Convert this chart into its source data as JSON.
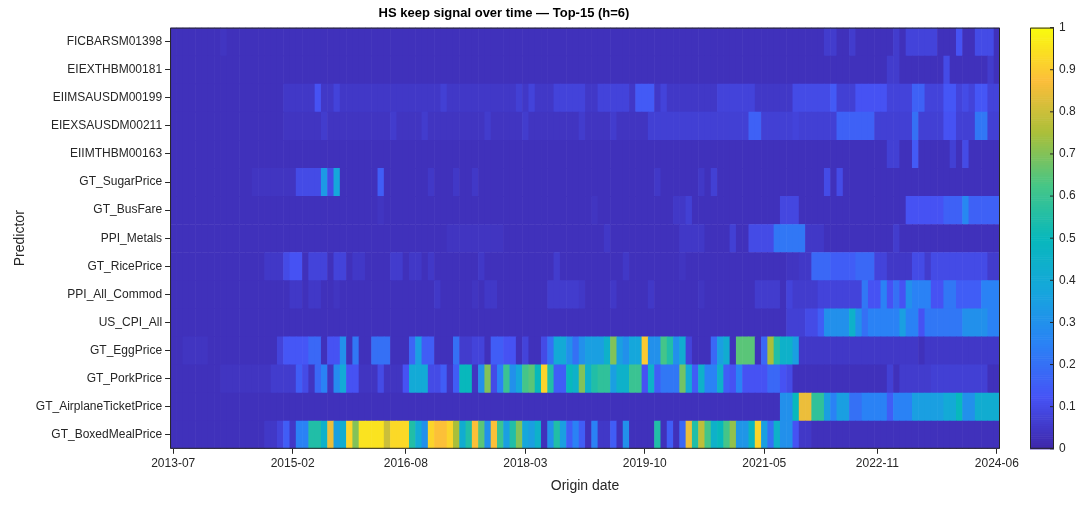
{
  "chart_data": {
    "type": "heatmap",
    "title": "HS keep signal over time — Top-15 (h=6)",
    "xlabel": "Origin date",
    "ylabel": "Predictor",
    "categories": [
      "2013-07",
      null,
      null,
      null,
      null,
      null,
      null,
      null,
      null,
      null,
      null,
      null,
      null,
      null,
      null,
      null,
      null,
      null,
      null,
      "2015-02",
      null,
      null,
      null,
      null,
      null,
      null,
      null,
      null,
      null,
      null,
      null,
      null,
      null,
      null,
      null,
      null,
      null,
      "2016-08",
      null,
      null,
      null,
      null,
      null,
      null,
      null,
      null,
      null,
      null,
      null,
      null,
      null,
      null,
      null,
      null,
      null,
      null,
      "2018-03",
      null,
      null,
      null,
      null,
      null,
      null,
      null,
      null,
      null,
      null,
      null,
      null,
      null,
      null,
      null,
      null,
      null,
      null,
      "2019-10",
      null,
      null,
      null,
      null,
      null,
      null,
      null,
      null,
      null,
      null,
      null,
      null,
      null,
      null,
      null,
      null,
      null,
      null,
      "2021-05",
      null,
      null,
      null,
      null,
      null,
      null,
      null,
      null,
      null,
      null,
      null,
      null,
      null,
      null,
      null,
      null,
      null,
      "2022-11",
      null,
      null,
      null,
      null,
      null,
      null,
      null,
      null,
      null,
      null,
      null,
      null,
      null,
      null,
      null,
      null,
      null,
      null,
      "2024-06"
    ],
    "y_categories": [
      "FICBARSM01398",
      "EIEXTHBM00181",
      "EIIMSAUSDM00199",
      "EIEXSAUSDM00211",
      "EIIMTHBM00163",
      "GT_SugarPrice",
      "GT_BusFare",
      "PPI_Metals",
      "GT_RicePrice",
      "PPI_All_Commod",
      "US_CPI_All",
      "GT_EggPrice",
      "GT_PorkPrice",
      "GT_AirplaneTicketPrice",
      "GT_BoxedMealPrice"
    ],
    "cells": [
      [
        0.03,
        0.03,
        0.03,
        0.03,
        0.03,
        0.03,
        0.03,
        0.03,
        0.04,
        0.03,
        0.03,
        0.03,
        0.03,
        0.03,
        0.03,
        0.03,
        0.03,
        0.03,
        0.03,
        0.03,
        0.03,
        0.03,
        0.03,
        0.03,
        0.03,
        0.03,
        0.03,
        0.03,
        0.03,
        0.03,
        0.03,
        0.03,
        0.03,
        0.03,
        0.03,
        0.03,
        0.03,
        0.03,
        0.03,
        0.03,
        0.03,
        0.03,
        0.03,
        0.03,
        0.03,
        0.03,
        0.03,
        0.03,
        0.03,
        0.03,
        0.03,
        0.03,
        0.03,
        0.03,
        0.03,
        0.03,
        0.03,
        0.03,
        0.03,
        0.03,
        0.03,
        0.03,
        0.03,
        0.03,
        0.03,
        0.03,
        0.03,
        0.03,
        0.03,
        0.03,
        0.03,
        0.03,
        0.03,
        0.03,
        0.03,
        0.03,
        0.03,
        0.03,
        0.03,
        0.03,
        0.03,
        0.03,
        0.03,
        0.03,
        0.03,
        0.03,
        0.03,
        0.03,
        0.03,
        0.03,
        0.03,
        0.03,
        0.03,
        0.03,
        0.03,
        0.03,
        0.03,
        0.03,
        0.03,
        0.03,
        0.03,
        0.03,
        0.03,
        0.03,
        0.06,
        0.06,
        0.03,
        0.03,
        0.06,
        0.03,
        0.03,
        0.03,
        0.03,
        0.03,
        0.03,
        0.06,
        0.03,
        0.08,
        0.08,
        0.08,
        0.08,
        0.08,
        0.03,
        0.03,
        0.03,
        0.12,
        0.03,
        0.03,
        0.1,
        0.1,
        0.1,
        0.03
      ],
      [
        0.03,
        0.03,
        0.03,
        0.03,
        0.03,
        0.03,
        0.03,
        0.03,
        0.03,
        0.03,
        0.03,
        0.03,
        0.03,
        0.03,
        0.03,
        0.03,
        0.03,
        0.03,
        0.03,
        0.03,
        0.03,
        0.03,
        0.03,
        0.03,
        0.03,
        0.03,
        0.03,
        0.03,
        0.03,
        0.03,
        0.03,
        0.03,
        0.03,
        0.03,
        0.03,
        0.03,
        0.03,
        0.03,
        0.03,
        0.03,
        0.03,
        0.03,
        0.03,
        0.03,
        0.03,
        0.03,
        0.03,
        0.03,
        0.03,
        0.03,
        0.03,
        0.03,
        0.03,
        0.03,
        0.03,
        0.03,
        0.03,
        0.03,
        0.03,
        0.03,
        0.03,
        0.03,
        0.03,
        0.03,
        0.03,
        0.03,
        0.03,
        0.03,
        0.03,
        0.03,
        0.03,
        0.03,
        0.03,
        0.03,
        0.03,
        0.03,
        0.03,
        0.03,
        0.03,
        0.03,
        0.03,
        0.03,
        0.03,
        0.03,
        0.03,
        0.03,
        0.03,
        0.03,
        0.03,
        0.03,
        0.03,
        0.03,
        0.03,
        0.03,
        0.03,
        0.03,
        0.03,
        0.03,
        0.03,
        0.03,
        0.03,
        0.03,
        0.03,
        0.03,
        0.03,
        0.03,
        0.03,
        0.03,
        0.03,
        0.03,
        0.03,
        0.03,
        0.03,
        0.03,
        0.06,
        0.06,
        0.03,
        0.03,
        0.03,
        0.03,
        0.03,
        0.03,
        0.03,
        0.1,
        0.03,
        0.03,
        0.03,
        0.03,
        0.03,
        0.03,
        0.06,
        0.03
      ],
      [
        0.03,
        0.03,
        0.03,
        0.03,
        0.03,
        0.03,
        0.03,
        0.03,
        0.03,
        0.03,
        0.03,
        0.03,
        0.03,
        0.03,
        0.03,
        0.03,
        0.03,
        0.03,
        0.05,
        0.05,
        0.05,
        0.05,
        0.05,
        0.12,
        0.05,
        0.05,
        0.08,
        0.05,
        0.05,
        0.05,
        0.05,
        0.05,
        0.05,
        0.05,
        0.05,
        0.05,
        0.05,
        0.05,
        0.05,
        0.05,
        0.05,
        0.05,
        0.05,
        0.07,
        0.05,
        0.05,
        0.05,
        0.05,
        0.05,
        0.05,
        0.05,
        0.05,
        0.05,
        0.05,
        0.05,
        0.07,
        0.05,
        0.08,
        0.05,
        0.05,
        0.05,
        0.08,
        0.08,
        0.08,
        0.08,
        0.08,
        0.05,
        0.05,
        0.08,
        0.08,
        0.08,
        0.08,
        0.08,
        0.05,
        0.14,
        0.14,
        0.14,
        0.05,
        0.08,
        0.05,
        0.05,
        0.05,
        0.05,
        0.05,
        0.05,
        0.05,
        0.05,
        0.08,
        0.08,
        0.08,
        0.08,
        0.08,
        0.08,
        0.05,
        0.05,
        0.05,
        0.05,
        0.05,
        0.05,
        0.1,
        0.1,
        0.1,
        0.1,
        0.1,
        0.1,
        0.14,
        0.07,
        0.07,
        0.07,
        0.12,
        0.12,
        0.12,
        0.12,
        0.12,
        0.08,
        0.08,
        0.08,
        0.08,
        0.16,
        0.16,
        0.08,
        0.08,
        0.08,
        0.13,
        0.13,
        0.08,
        0.1,
        0.08,
        0.13,
        0.13,
        0.08,
        0.08
      ],
      [
        0.03,
        0.03,
        0.03,
        0.03,
        0.03,
        0.03,
        0.03,
        0.03,
        0.03,
        0.03,
        0.03,
        0.03,
        0.03,
        0.03,
        0.03,
        0.03,
        0.03,
        0.03,
        0.04,
        0.04,
        0.04,
        0.04,
        0.04,
        0.04,
        0.06,
        0.04,
        0.04,
        0.04,
        0.04,
        0.04,
        0.04,
        0.04,
        0.04,
        0.04,
        0.04,
        0.06,
        0.04,
        0.04,
        0.04,
        0.04,
        0.06,
        0.04,
        0.04,
        0.04,
        0.04,
        0.04,
        0.04,
        0.04,
        0.04,
        0.04,
        0.06,
        0.04,
        0.04,
        0.04,
        0.04,
        0.04,
        0.06,
        0.04,
        0.04,
        0.04,
        0.04,
        0.04,
        0.04,
        0.04,
        0.04,
        0.06,
        0.04,
        0.04,
        0.04,
        0.04,
        0.06,
        0.04,
        0.04,
        0.04,
        0.04,
        0.04,
        0.07,
        0.07,
        0.07,
        0.07,
        0.07,
        0.07,
        0.07,
        0.07,
        0.07,
        0.07,
        0.07,
        0.07,
        0.07,
        0.07,
        0.07,
        0.07,
        0.16,
        0.16,
        0.07,
        0.07,
        0.07,
        0.07,
        0.07,
        0.08,
        0.07,
        0.07,
        0.07,
        0.07,
        0.07,
        0.07,
        0.16,
        0.16,
        0.16,
        0.16,
        0.16,
        0.16,
        0.07,
        0.07,
        0.07,
        0.07,
        0.07,
        0.07,
        0.2,
        0.07,
        0.07,
        0.07,
        0.07,
        0.12,
        0.12,
        0.07,
        0.07,
        0.07,
        0.22,
        0.22,
        0.07,
        0.07
      ],
      [
        0.03,
        0.03,
        0.03,
        0.03,
        0.03,
        0.03,
        0.03,
        0.03,
        0.03,
        0.03,
        0.03,
        0.03,
        0.03,
        0.03,
        0.03,
        0.03,
        0.03,
        0.03,
        0.03,
        0.03,
        0.03,
        0.03,
        0.03,
        0.03,
        0.03,
        0.03,
        0.03,
        0.03,
        0.03,
        0.03,
        0.03,
        0.03,
        0.03,
        0.03,
        0.03,
        0.03,
        0.03,
        0.03,
        0.03,
        0.03,
        0.03,
        0.03,
        0.03,
        0.03,
        0.03,
        0.03,
        0.03,
        0.03,
        0.03,
        0.03,
        0.03,
        0.03,
        0.03,
        0.03,
        0.03,
        0.03,
        0.03,
        0.03,
        0.03,
        0.03,
        0.03,
        0.03,
        0.03,
        0.03,
        0.03,
        0.03,
        0.03,
        0.03,
        0.03,
        0.03,
        0.03,
        0.03,
        0.03,
        0.03,
        0.03,
        0.03,
        0.03,
        0.03,
        0.03,
        0.03,
        0.03,
        0.03,
        0.03,
        0.03,
        0.03,
        0.03,
        0.03,
        0.03,
        0.03,
        0.03,
        0.03,
        0.03,
        0.03,
        0.03,
        0.03,
        0.03,
        0.03,
        0.03,
        0.03,
        0.03,
        0.03,
        0.03,
        0.03,
        0.03,
        0.03,
        0.03,
        0.03,
        0.03,
        0.03,
        0.03,
        0.03,
        0.03,
        0.03,
        0.03,
        0.07,
        0.07,
        0.03,
        0.03,
        0.14,
        0.03,
        0.03,
        0.03,
        0.03,
        0.03,
        0.07,
        0.03,
        0.1,
        0.03,
        0.03,
        0.03,
        0.03,
        0.03
      ],
      [
        0.03,
        0.03,
        0.03,
        0.03,
        0.03,
        0.03,
        0.03,
        0.03,
        0.03,
        0.03,
        0.03,
        0.03,
        0.03,
        0.04,
        0.04,
        0.04,
        0.04,
        0.04,
        0.04,
        0.04,
        0.1,
        0.1,
        0.1,
        0.1,
        0.33,
        0.1,
        0.38,
        0.03,
        0.03,
        0.03,
        0.03,
        0.03,
        0.03,
        0.15,
        0.03,
        0.03,
        0.03,
        0.03,
        0.03,
        0.03,
        0.03,
        0.05,
        0.03,
        0.03,
        0.03,
        0.05,
        0.03,
        0.03,
        0.05,
        0.03,
        0.03,
        0.03,
        0.03,
        0.03,
        0.03,
        0.03,
        0.03,
        0.03,
        0.03,
        0.03,
        0.03,
        0.03,
        0.03,
        0.03,
        0.03,
        0.03,
        0.03,
        0.03,
        0.03,
        0.03,
        0.03,
        0.03,
        0.03,
        0.03,
        0.03,
        0.03,
        0.03,
        0.05,
        0.03,
        0.03,
        0.03,
        0.03,
        0.03,
        0.03,
        0.05,
        0.03,
        0.07,
        0.03,
        0.03,
        0.03,
        0.03,
        0.03,
        0.03,
        0.03,
        0.03,
        0.03,
        0.03,
        0.03,
        0.03,
        0.03,
        0.03,
        0.03,
        0.03,
        0.03,
        0.1,
        0.03,
        0.1,
        0.03,
        0.03,
        0.03,
        0.03,
        0.03,
        0.03,
        0.03,
        0.03,
        0.03,
        0.03,
        0.03,
        0.03,
        0.03,
        0.03,
        0.03,
        0.03,
        0.03,
        0.03,
        0.03,
        0.03,
        0.03,
        0.03,
        0.03,
        0.03,
        0.03
      ],
      [
        0.03,
        0.03,
        0.03,
        0.03,
        0.03,
        0.03,
        0.03,
        0.03,
        0.03,
        0.03,
        0.03,
        0.03,
        0.03,
        0.03,
        0.03,
        0.03,
        0.03,
        0.03,
        0.03,
        0.03,
        0.03,
        0.03,
        0.03,
        0.03,
        0.03,
        0.03,
        0.03,
        0.03,
        0.03,
        0.03,
        0.03,
        0.03,
        0.03,
        0.04,
        0.03,
        0.03,
        0.03,
        0.03,
        0.03,
        0.03,
        0.03,
        0.03,
        0.03,
        0.03,
        0.03,
        0.03,
        0.03,
        0.03,
        0.03,
        0.03,
        0.03,
        0.03,
        0.03,
        0.03,
        0.03,
        0.03,
        0.03,
        0.03,
        0.03,
        0.03,
        0.03,
        0.03,
        0.03,
        0.03,
        0.03,
        0.03,
        0.03,
        0.04,
        0.03,
        0.03,
        0.03,
        0.03,
        0.03,
        0.03,
        0.03,
        0.03,
        0.03,
        0.03,
        0.03,
        0.03,
        0.05,
        0.05,
        0.07,
        0.03,
        0.03,
        0.03,
        0.03,
        0.03,
        0.03,
        0.03,
        0.03,
        0.03,
        0.03,
        0.03,
        0.03,
        0.03,
        0.03,
        0.09,
        0.09,
        0.09,
        0.03,
        0.03,
        0.03,
        0.03,
        0.03,
        0.03,
        0.03,
        0.03,
        0.03,
        0.03,
        0.03,
        0.03,
        0.03,
        0.03,
        0.03,
        0.03,
        0.03,
        0.12,
        0.12,
        0.12,
        0.12,
        0.12,
        0.12,
        0.16,
        0.16,
        0.16,
        0.27,
        0.16,
        0.16,
        0.16,
        0.16,
        0.16
      ],
      [
        0.03,
        0.03,
        0.03,
        0.03,
        0.03,
        0.03,
        0.03,
        0.03,
        0.03,
        0.03,
        0.03,
        0.03,
        0.03,
        0.03,
        0.03,
        0.03,
        0.03,
        0.03,
        0.03,
        0.03,
        0.03,
        0.03,
        0.03,
        0.03,
        0.03,
        0.03,
        0.03,
        0.03,
        0.03,
        0.03,
        0.03,
        0.03,
        0.03,
        0.03,
        0.03,
        0.03,
        0.03,
        0.03,
        0.03,
        0.03,
        0.03,
        0.03,
        0.03,
        0.03,
        0.04,
        0.04,
        0.04,
        0.04,
        0.04,
        0.04,
        0.04,
        0.04,
        0.04,
        0.03,
        0.03,
        0.03,
        0.03,
        0.03,
        0.03,
        0.03,
        0.03,
        0.03,
        0.03,
        0.03,
        0.03,
        0.03,
        0.03,
        0.03,
        0.03,
        0.05,
        0.03,
        0.03,
        0.03,
        0.03,
        0.03,
        0.03,
        0.03,
        0.03,
        0.03,
        0.03,
        0.03,
        0.05,
        0.05,
        0.05,
        0.05,
        0.03,
        0.03,
        0.03,
        0.03,
        0.07,
        0.03,
        0.03,
        0.1,
        0.1,
        0.1,
        0.1,
        0.22,
        0.22,
        0.22,
        0.22,
        0.22,
        0.05,
        0.05,
        0.05,
        0.03,
        0.03,
        0.03,
        0.03,
        0.03,
        0.03,
        0.03,
        0.03,
        0.03,
        0.03,
        0.03,
        0.06,
        0.03,
        0.03,
        0.03,
        0.03,
        0.03,
        0.03,
        0.03,
        0.03,
        0.03,
        0.03,
        0.03,
        0.03,
        0.03,
        0.03,
        0.03,
        0.03
      ],
      [
        0.03,
        0.03,
        0.03,
        0.03,
        0.03,
        0.03,
        0.03,
        0.03,
        0.03,
        0.03,
        0.03,
        0.03,
        0.03,
        0.03,
        0.03,
        0.05,
        0.05,
        0.05,
        0.1,
        0.12,
        0.12,
        0.03,
        0.08,
        0.08,
        0.08,
        0.03,
        0.08,
        0.08,
        0.03,
        0.05,
        0.05,
        0.03,
        0.03,
        0.03,
        0.03,
        0.06,
        0.06,
        0.03,
        0.05,
        0.05,
        0.03,
        0.05,
        0.03,
        0.03,
        0.03,
        0.03,
        0.03,
        0.03,
        0.03,
        0.05,
        0.03,
        0.03,
        0.03,
        0.03,
        0.03,
        0.03,
        0.03,
        0.03,
        0.03,
        0.03,
        0.03,
        0.06,
        0.03,
        0.03,
        0.03,
        0.03,
        0.03,
        0.03,
        0.03,
        0.03,
        0.03,
        0.03,
        0.05,
        0.03,
        0.03,
        0.03,
        0.03,
        0.03,
        0.03,
        0.03,
        0.03,
        0.04,
        0.03,
        0.03,
        0.03,
        0.03,
        0.03,
        0.03,
        0.03,
        0.03,
        0.03,
        0.03,
        0.03,
        0.03,
        0.03,
        0.03,
        0.03,
        0.03,
        0.04,
        0.04,
        0.05,
        0.05,
        0.18,
        0.18,
        0.18,
        0.15,
        0.15,
        0.15,
        0.15,
        0.18,
        0.18,
        0.18,
        0.08,
        0.08,
        0.05,
        0.05,
        0.05,
        0.05,
        0.1,
        0.1,
        0.06,
        0.1,
        0.1,
        0.1,
        0.1,
        0.1,
        0.1,
        0.1,
        0.1,
        0.1,
        0.06,
        0.06
      ],
      [
        0.03,
        0.03,
        0.03,
        0.03,
        0.03,
        0.03,
        0.03,
        0.03,
        0.03,
        0.03,
        0.03,
        0.03,
        0.03,
        0.03,
        0.03,
        0.03,
        0.03,
        0.03,
        0.03,
        0.05,
        0.05,
        0.03,
        0.05,
        0.05,
        0.03,
        0.03,
        0.04,
        0.03,
        0.03,
        0.03,
        0.03,
        0.03,
        0.03,
        0.03,
        0.03,
        0.03,
        0.03,
        0.03,
        0.03,
        0.03,
        0.03,
        0.03,
        0.05,
        0.03,
        0.03,
        0.03,
        0.03,
        0.03,
        0.04,
        0.03,
        0.05,
        0.05,
        0.03,
        0.03,
        0.03,
        0.03,
        0.03,
        0.03,
        0.03,
        0.03,
        0.06,
        0.06,
        0.06,
        0.06,
        0.06,
        0.05,
        0.03,
        0.03,
        0.03,
        0.03,
        0.05,
        0.03,
        0.03,
        0.03,
        0.03,
        0.03,
        0.05,
        0.03,
        0.03,
        0.03,
        0.03,
        0.03,
        0.03,
        0.03,
        0.04,
        0.03,
        0.03,
        0.03,
        0.03,
        0.03,
        0.03,
        0.03,
        0.03,
        0.06,
        0.06,
        0.06,
        0.06,
        0.03,
        0.08,
        0.06,
        0.06,
        0.06,
        0.06,
        0.08,
        0.08,
        0.08,
        0.08,
        0.08,
        0.08,
        0.08,
        0.22,
        0.12,
        0.12,
        0.25,
        0.12,
        0.2,
        0.12,
        0.3,
        0.25,
        0.25,
        0.25,
        0.12,
        0.12,
        0.22,
        0.22,
        0.15,
        0.15,
        0.15,
        0.15,
        0.25,
        0.25,
        0.25
      ],
      [
        0.03,
        0.03,
        0.03,
        0.03,
        0.03,
        0.03,
        0.03,
        0.03,
        0.03,
        0.03,
        0.03,
        0.03,
        0.03,
        0.03,
        0.03,
        0.03,
        0.03,
        0.03,
        0.03,
        0.03,
        0.03,
        0.03,
        0.03,
        0.03,
        0.03,
        0.03,
        0.03,
        0.03,
        0.03,
        0.03,
        0.03,
        0.03,
        0.03,
        0.03,
        0.03,
        0.03,
        0.03,
        0.03,
        0.03,
        0.03,
        0.03,
        0.03,
        0.03,
        0.03,
        0.03,
        0.03,
        0.03,
        0.03,
        0.03,
        0.03,
        0.03,
        0.03,
        0.03,
        0.03,
        0.03,
        0.03,
        0.03,
        0.03,
        0.03,
        0.03,
        0.03,
        0.03,
        0.03,
        0.03,
        0.03,
        0.03,
        0.03,
        0.03,
        0.03,
        0.03,
        0.03,
        0.03,
        0.03,
        0.03,
        0.03,
        0.03,
        0.03,
        0.03,
        0.03,
        0.03,
        0.03,
        0.03,
        0.03,
        0.03,
        0.03,
        0.03,
        0.03,
        0.03,
        0.03,
        0.03,
        0.03,
        0.03,
        0.03,
        0.03,
        0.03,
        0.03,
        0.03,
        0.03,
        0.07,
        0.07,
        0.07,
        0.1,
        0.1,
        0.15,
        0.3,
        0.3,
        0.3,
        0.3,
        0.45,
        0.3,
        0.2,
        0.25,
        0.25,
        0.25,
        0.25,
        0.25,
        0.35,
        0.25,
        0.25,
        0.12,
        0.22,
        0.22,
        0.22,
        0.22,
        0.22,
        0.22,
        0.3,
        0.3,
        0.3,
        0.3,
        0.25,
        0.25
      ],
      [
        0.03,
        0.03,
        0.04,
        0.04,
        0.04,
        0.04,
        0.03,
        0.03,
        0.03,
        0.03,
        0.03,
        0.03,
        0.03,
        0.03,
        0.03,
        0.03,
        0.03,
        0.08,
        0.13,
        0.13,
        0.13,
        0.13,
        0.18,
        0.18,
        0.03,
        0.12,
        0.12,
        0.3,
        0.03,
        0.22,
        0.03,
        0.03,
        0.2,
        0.2,
        0.2,
        0.03,
        0.03,
        0.03,
        0.17,
        0.35,
        0.15,
        0.15,
        0.03,
        0.03,
        0.03,
        0.2,
        0.06,
        0.06,
        0.08,
        0.08,
        0.03,
        0.15,
        0.15,
        0.12,
        0.12,
        0.03,
        0.08,
        0.03,
        0.03,
        0.1,
        0.2,
        0.4,
        0.4,
        0.3,
        0.2,
        0.3,
        0.35,
        0.35,
        0.35,
        0.45,
        0.7,
        0.35,
        0.3,
        0.38,
        0.38,
        0.9,
        0.3,
        0.3,
        0.62,
        0.55,
        0.3,
        0.42,
        0.08,
        0.03,
        0.03,
        0.03,
        0.18,
        0.35,
        0.42,
        0.03,
        0.65,
        0.65,
        0.65,
        0.03,
        0.18,
        0.75,
        0.55,
        0.45,
        0.45,
        0.35,
        0.05,
        0.05,
        0.05,
        0.05,
        0.05,
        0.05,
        0.05,
        0.05,
        0.05,
        0.05,
        0.05,
        0.05,
        0.05,
        0.05,
        0.05,
        0.05,
        0.05,
        0.05,
        0.05,
        0.03,
        0.05,
        0.05,
        0.05,
        0.05,
        0.05,
        0.05,
        0.05,
        0.05,
        0.05,
        0.05,
        0.05,
        0.05
      ],
      [
        0.03,
        0.03,
        0.03,
        0.03,
        0.03,
        0.03,
        0.03,
        0.03,
        0.04,
        0.04,
        0.04,
        0.04,
        0.04,
        0.04,
        0.04,
        0.04,
        0.06,
        0.06,
        0.06,
        0.06,
        0.15,
        0.1,
        0.04,
        0.18,
        0.25,
        0.04,
        0.28,
        0.4,
        0.12,
        0.12,
        0.04,
        0.04,
        0.04,
        0.1,
        0.04,
        0.04,
        0.04,
        0.12,
        0.4,
        0.4,
        0.4,
        0.1,
        0.1,
        0.15,
        0.04,
        0.15,
        0.5,
        0.5,
        0.04,
        0.3,
        0.7,
        0.1,
        0.25,
        0.6,
        0.3,
        0.38,
        0.62,
        0.65,
        0.5,
        0.92,
        0.55,
        0.15,
        0.15,
        0.5,
        0.45,
        0.7,
        0.45,
        0.55,
        0.58,
        0.58,
        0.35,
        0.45,
        0.45,
        0.6,
        0.6,
        0.12,
        0.45,
        0.15,
        0.22,
        0.22,
        0.22,
        0.68,
        0.4,
        0.15,
        0.45,
        0.25,
        0.25,
        0.45,
        0.15,
        0.12,
        0.25,
        0.12,
        0.12,
        0.12,
        0.12,
        0.18,
        0.18,
        0.12,
        0.1,
        0.03,
        0.03,
        0.03,
        0.03,
        0.03,
        0.03,
        0.03,
        0.03,
        0.03,
        0.03,
        0.03,
        0.03,
        0.03,
        0.03,
        0.03,
        0.07,
        0.03,
        0.06,
        0.06,
        0.06,
        0.06,
        0.06,
        0.07,
        0.07,
        0.07,
        0.07,
        0.07,
        0.07,
        0.07,
        0.07,
        0.07,
        0.03,
        0.03
      ],
      [
        0.03,
        0.03,
        0.03,
        0.03,
        0.03,
        0.03,
        0.03,
        0.03,
        0.03,
        0.03,
        0.03,
        0.03,
        0.03,
        0.03,
        0.03,
        0.03,
        0.03,
        0.03,
        0.03,
        0.03,
        0.03,
        0.03,
        0.03,
        0.03,
        0.03,
        0.03,
        0.03,
        0.03,
        0.03,
        0.03,
        0.03,
        0.03,
        0.03,
        0.03,
        0.03,
        0.03,
        0.03,
        0.03,
        0.03,
        0.03,
        0.03,
        0.03,
        0.03,
        0.03,
        0.03,
        0.03,
        0.03,
        0.03,
        0.03,
        0.03,
        0.03,
        0.03,
        0.03,
        0.03,
        0.03,
        0.03,
        0.03,
        0.03,
        0.03,
        0.03,
        0.03,
        0.03,
        0.03,
        0.03,
        0.03,
        0.03,
        0.03,
        0.03,
        0.03,
        0.03,
        0.03,
        0.03,
        0.03,
        0.03,
        0.03,
        0.03,
        0.03,
        0.03,
        0.03,
        0.03,
        0.03,
        0.03,
        0.03,
        0.03,
        0.03,
        0.03,
        0.03,
        0.03,
        0.03,
        0.03,
        0.03,
        0.03,
        0.03,
        0.03,
        0.03,
        0.03,
        0.03,
        0.3,
        0.3,
        0.5,
        0.85,
        0.85,
        0.58,
        0.58,
        0.35,
        0.25,
        0.35,
        0.35,
        0.2,
        0.2,
        0.25,
        0.25,
        0.25,
        0.25,
        0.15,
        0.25,
        0.25,
        0.25,
        0.35,
        0.35,
        0.35,
        0.35,
        0.35,
        0.4,
        0.4,
        0.5,
        0.3,
        0.3,
        0.42,
        0.42,
        0.42,
        0.42
      ],
      [
        0.03,
        0.03,
        0.03,
        0.03,
        0.03,
        0.03,
        0.03,
        0.03,
        0.03,
        0.03,
        0.03,
        0.03,
        0.03,
        0.03,
        0.03,
        0.05,
        0.05,
        0.08,
        0.15,
        0.05,
        0.25,
        0.25,
        0.55,
        0.55,
        0.45,
        0.85,
        0.35,
        0.42,
        0.92,
        0.7,
        0.95,
        0.95,
        0.95,
        0.95,
        0.8,
        0.93,
        0.93,
        0.93,
        0.55,
        0.4,
        0.3,
        0.92,
        0.88,
        0.88,
        0.92,
        0.75,
        0.42,
        0.55,
        0.88,
        0.65,
        0.3,
        0.88,
        0.6,
        0.35,
        0.55,
        0.7,
        0.38,
        0.35,
        0.45,
        0.03,
        0.3,
        0.55,
        0.35,
        0.15,
        0.25,
        0.15,
        0.03,
        0.25,
        0.05,
        0.05,
        0.15,
        0.03,
        0.3,
        0.03,
        0.03,
        0.03,
        0.03,
        0.55,
        0.03,
        0.15,
        0.03,
        0.18,
        0.85,
        0.55,
        0.78,
        0.62,
        0.45,
        0.5,
        0.62,
        0.72,
        0.32,
        0.32,
        0.48,
        0.92,
        0.35,
        0.2,
        0.45,
        0.3,
        0.3,
        0.12,
        0.05,
        0.05,
        0.03,
        0.03,
        0.03,
        0.03,
        0.03,
        0.03,
        0.03,
        0.03,
        0.03,
        0.03,
        0.03,
        0.03,
        0.03,
        0.03,
        0.03,
        0.03,
        0.03,
        0.03,
        0.03,
        0.03,
        0.03,
        0.03,
        0.03,
        0.03,
        0.03,
        0.03,
        0.03,
        0.03,
        0.03,
        0.03
      ]
    ],
    "clim": [
      0,
      1
    ],
    "cticks": [
      0,
      0.1,
      0.2,
      0.3,
      0.4,
      0.5,
      0.6,
      0.7,
      0.8,
      0.9,
      1
    ]
  }
}
